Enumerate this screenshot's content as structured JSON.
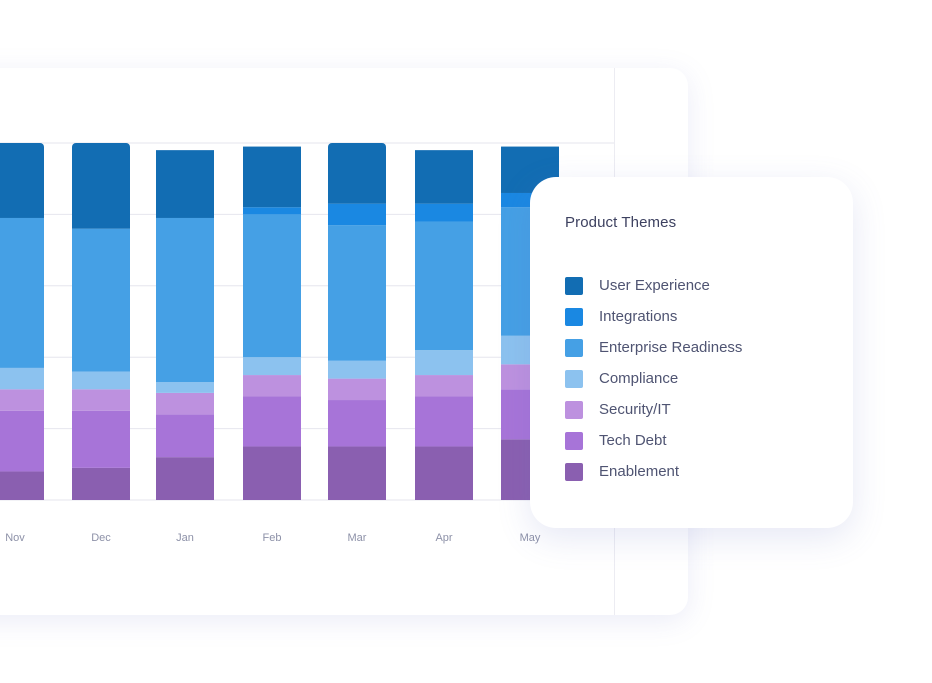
{
  "chart_data": {
    "type": "bar",
    "stacked": true,
    "categories": [
      "Nov",
      "Dec",
      "Jan",
      "Feb",
      "Mar",
      "Apr",
      "May"
    ],
    "ylim": [
      0,
      100
    ],
    "grid": true,
    "legend_placement": "right",
    "series": [
      {
        "name": "Enablement",
        "color": "#8a5fb0",
        "values": [
          8,
          9,
          12,
          15,
          15,
          15,
          17
        ]
      },
      {
        "name": "Tech Debt",
        "color": "#a774d8",
        "values": [
          17,
          16,
          12,
          14,
          13,
          14,
          14
        ]
      },
      {
        "name": "Security/IT",
        "color": "#bd91df",
        "values": [
          6,
          6,
          6,
          6,
          6,
          6,
          7
        ]
      },
      {
        "name": "Compliance",
        "color": "#8cc2ef",
        "values": [
          6,
          5,
          3,
          5,
          5,
          7,
          8
        ]
      },
      {
        "name": "Enterprise Readiness",
        "color": "#45a0e5",
        "values": [
          42,
          40,
          46,
          40,
          38,
          36,
          36
        ]
      },
      {
        "name": "Integrations",
        "color": "#1a88e2",
        "values": [
          0,
          0,
          0,
          2,
          6,
          5,
          4
        ]
      },
      {
        "name": "User Experience",
        "color": "#126db3",
        "values": [
          21,
          24,
          19,
          17,
          17,
          15,
          13
        ]
      }
    ]
  },
  "legend": {
    "title": "Product Themes",
    "items": [
      {
        "label": "User Experience",
        "color": "#126db3"
      },
      {
        "label": "Integrations",
        "color": "#1a88e2"
      },
      {
        "label": "Enterprise Readiness",
        "color": "#45a0e5"
      },
      {
        "label": "Compliance",
        "color": "#8cc2ef"
      },
      {
        "label": "Security/IT",
        "color": "#bd91df"
      },
      {
        "label": "Tech Debt",
        "color": "#a774d8"
      },
      {
        "label": "Enablement",
        "color": "#8a5fb0"
      }
    ]
  },
  "colors": {
    "gridline": "#e6e6ee",
    "tick_text": "#8d91a8"
  }
}
